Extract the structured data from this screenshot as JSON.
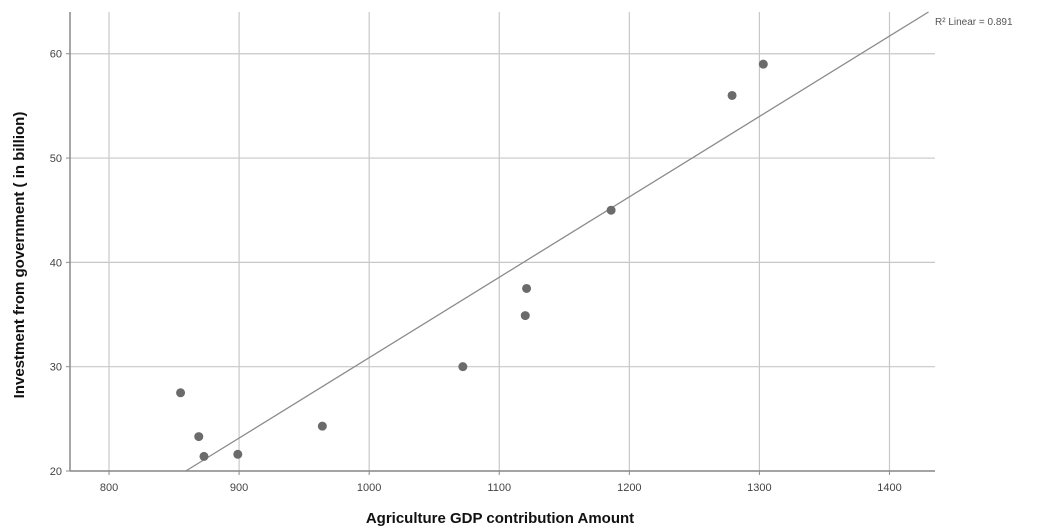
{
  "chart_data": {
    "type": "scatter",
    "xlabel": "Agriculture GDP contribution Amount",
    "ylabel": "Investment from government ( in billion)",
    "xlim": [
      770,
      1435
    ],
    "ylim": [
      20,
      64
    ],
    "x_ticks": [
      800,
      900,
      1000,
      1100,
      1200,
      1300,
      1400
    ],
    "y_ticks": [
      20,
      30,
      40,
      50,
      60
    ],
    "grid": true,
    "points": [
      {
        "x": 855,
        "y": 27.5
      },
      {
        "x": 869,
        "y": 23.3
      },
      {
        "x": 873,
        "y": 21.4
      },
      {
        "x": 899,
        "y": 21.6
      },
      {
        "x": 964,
        "y": 24.3
      },
      {
        "x": 1072,
        "y": 30.0
      },
      {
        "x": 1120,
        "y": 34.9
      },
      {
        "x": 1121,
        "y": 37.5
      },
      {
        "x": 1186,
        "y": 45.0
      },
      {
        "x": 1279,
        "y": 56.0
      },
      {
        "x": 1303,
        "y": 59.0
      }
    ],
    "fit_line": {
      "type": "linear",
      "start": {
        "x": 859,
        "y": 20
      },
      "end": {
        "x": 1430,
        "y": 64
      },
      "r2_label": "R² Linear = 0.891",
      "r2_value": 0.891
    },
    "colors": {
      "point": "#6b6b6b",
      "line": "#8a8a8a",
      "grid": "#c8c8c8",
      "axis": "#8a8a8a"
    }
  }
}
